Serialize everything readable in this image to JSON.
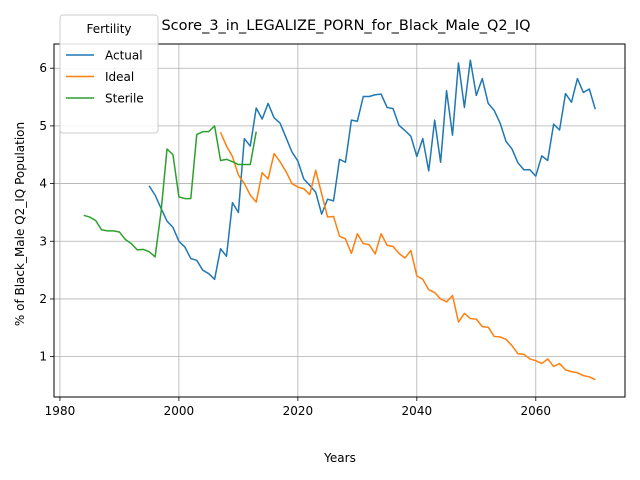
{
  "chart_data": {
    "type": "line",
    "title": "Score_3_in_LEGALIZE_PORN_for_Black_Male_Q2_IQ",
    "xlabel": "Years",
    "ylabel": "% of Black_Male Q2_IQ Population",
    "xlim": [
      1979,
      2075
    ],
    "ylim": [
      0.3,
      6.42
    ],
    "xticks": [
      1980,
      2000,
      2020,
      2040,
      2060
    ],
    "yticks": [
      1,
      2,
      3,
      4,
      5,
      6
    ],
    "grid": true,
    "legend": {
      "title": "Fertility",
      "placement": "top-left"
    },
    "series": [
      {
        "name": "Actual",
        "color": "#1f77b4",
        "x": [
          1995,
          1996,
          1997,
          1998,
          1999,
          2000,
          2001,
          2002,
          2003,
          2004,
          2005,
          2006,
          2007,
          2008,
          2009,
          2010,
          2011,
          2012,
          2013,
          2014,
          2015,
          2016,
          2017,
          2018,
          2019,
          2020,
          2021,
          2022,
          2023,
          2024,
          2025,
          2026,
          2027,
          2028,
          2029,
          2030,
          2031,
          2032,
          2033,
          2034,
          2035,
          2036,
          2037,
          2038,
          2039,
          2040,
          2041,
          2042,
          2043,
          2044,
          2045,
          2046,
          2047,
          2048,
          2049,
          2050,
          2051,
          2052,
          2053,
          2054,
          2055,
          2056,
          2057,
          2058,
          2059,
          2060,
          2061,
          2062,
          2063,
          2064,
          2065,
          2066,
          2067,
          2068,
          2069,
          2070
        ],
        "y": [
          3.96,
          3.8,
          3.57,
          3.35,
          3.24,
          3.0,
          2.9,
          2.7,
          2.67,
          2.5,
          2.44,
          2.34,
          2.87,
          2.74,
          3.67,
          3.5,
          4.78,
          4.65,
          5.31,
          5.12,
          5.39,
          5.14,
          5.05,
          4.8,
          4.55,
          4.39,
          4.08,
          3.97,
          3.85,
          3.47,
          3.73,
          3.7,
          4.42,
          4.37,
          5.1,
          5.08,
          5.51,
          5.51,
          5.54,
          5.55,
          5.32,
          5.3,
          5.01,
          4.92,
          4.82,
          4.47,
          4.78,
          4.22,
          5.1,
          4.37,
          5.61,
          4.84,
          6.09,
          5.32,
          6.14,
          5.53,
          5.82,
          5.39,
          5.27,
          5.05,
          4.73,
          4.6,
          4.36,
          4.24,
          4.24,
          4.13,
          4.48,
          4.4,
          5.03,
          4.93,
          5.56,
          5.41,
          5.82,
          5.58,
          5.64,
          5.29
        ]
      },
      {
        "name": "Ideal",
        "color": "#ff7f0e",
        "x": [
          2007,
          2008,
          2009,
          2010,
          2011,
          2012,
          2013,
          2014,
          2015,
          2016,
          2017,
          2018,
          2019,
          2020,
          2021,
          2022,
          2023,
          2024,
          2025,
          2026,
          2027,
          2028,
          2029,
          2030,
          2031,
          2032,
          2033,
          2034,
          2035,
          2036,
          2037,
          2038,
          2039,
          2040,
          2041,
          2042,
          2043,
          2044,
          2045,
          2046,
          2047,
          2048,
          2049,
          2050,
          2051,
          2052,
          2053,
          2054,
          2055,
          2056,
          2057,
          2058,
          2059,
          2060,
          2061,
          2062,
          2063,
          2064,
          2065,
          2066,
          2067,
          2068,
          2069,
          2070
        ],
        "y": [
          4.89,
          4.65,
          4.47,
          4.15,
          4.0,
          3.8,
          3.68,
          4.19,
          4.08,
          4.52,
          4.38,
          4.21,
          4.0,
          3.94,
          3.91,
          3.81,
          4.23,
          3.82,
          3.42,
          3.43,
          3.09,
          3.04,
          2.79,
          3.13,
          2.96,
          2.94,
          2.78,
          3.13,
          2.93,
          2.91,
          2.79,
          2.71,
          2.84,
          2.4,
          2.34,
          2.16,
          2.11,
          2.0,
          1.95,
          2.06,
          1.6,
          1.75,
          1.66,
          1.65,
          1.52,
          1.51,
          1.35,
          1.34,
          1.3,
          1.19,
          1.05,
          1.04,
          0.96,
          0.93,
          0.88,
          0.96,
          0.83,
          0.88,
          0.77,
          0.74,
          0.72,
          0.67,
          0.65,
          0.6
        ]
      },
      {
        "name": "Sterile",
        "color": "#2ca02c",
        "x": [
          1984,
          1985,
          1986,
          1987,
          1988,
          1989,
          1990,
          1991,
          1992,
          1993,
          1994,
          1995,
          1996,
          1997,
          1998,
          1999,
          2000,
          2001,
          2002,
          2003,
          2004,
          2005,
          2006,
          2007,
          2008,
          2009,
          2010,
          2011,
          2012,
          2013
        ],
        "y": [
          3.45,
          3.42,
          3.36,
          3.2,
          3.18,
          3.18,
          3.16,
          3.03,
          2.96,
          2.85,
          2.86,
          2.82,
          2.73,
          3.51,
          4.6,
          4.5,
          3.77,
          3.74,
          3.74,
          4.85,
          4.9,
          4.9,
          5.0,
          4.4,
          4.42,
          4.38,
          4.33,
          4.33,
          4.33,
          4.9
        ]
      }
    ]
  }
}
